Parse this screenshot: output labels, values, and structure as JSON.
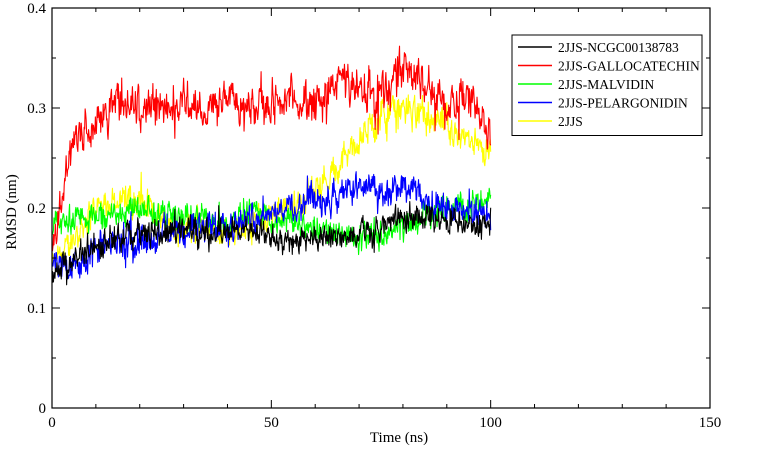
{
  "chart_data": {
    "type": "line",
    "title": "",
    "xlabel": "Time (ns)",
    "ylabel": "RMSD (nm)",
    "xlim": [
      0,
      150
    ],
    "ylim": [
      0,
      0.4
    ],
    "xticks": [
      0,
      50,
      100,
      150
    ],
    "yticks": [
      0,
      0.1,
      0.2,
      0.3,
      0.4
    ],
    "xtick_labels": [
      "0",
      "50",
      "100",
      "150"
    ],
    "ytick_labels": [
      "0",
      "0.1",
      "0.2",
      "0.3",
      "0.4"
    ],
    "grid": false,
    "legend_position": "top-right",
    "x": [
      0,
      5,
      10,
      15,
      20,
      25,
      30,
      35,
      40,
      45,
      50,
      55,
      60,
      65,
      70,
      75,
      80,
      85,
      90,
      95,
      100
    ],
    "series": [
      {
        "name": "2JJS-NCGC00138783",
        "color": "#000000",
        "values": [
          0.13,
          0.15,
          0.165,
          0.17,
          0.175,
          0.175,
          0.18,
          0.175,
          0.175,
          0.18,
          0.17,
          0.165,
          0.17,
          0.175,
          0.175,
          0.18,
          0.185,
          0.19,
          0.19,
          0.185,
          0.18
        ]
      },
      {
        "name": "2JJS-GALLOCATECHIN",
        "color": "#ff0000",
        "values": [
          0.16,
          0.27,
          0.29,
          0.31,
          0.3,
          0.3,
          0.305,
          0.3,
          0.31,
          0.3,
          0.305,
          0.31,
          0.3,
          0.33,
          0.32,
          0.31,
          0.34,
          0.33,
          0.3,
          0.31,
          0.28
        ]
      },
      {
        "name": "2JJS-MALVIDIN",
        "color": "#00ff00",
        "values": [
          0.18,
          0.19,
          0.19,
          0.195,
          0.2,
          0.195,
          0.19,
          0.19,
          0.185,
          0.2,
          0.19,
          0.185,
          0.18,
          0.175,
          0.17,
          0.175,
          0.18,
          0.19,
          0.2,
          0.2,
          0.21
        ]
      },
      {
        "name": "2JJS-PELARGONIDIN",
        "color": "#0000ff",
        "values": [
          0.15,
          0.14,
          0.16,
          0.165,
          0.17,
          0.175,
          0.175,
          0.18,
          0.185,
          0.19,
          0.2,
          0.2,
          0.21,
          0.21,
          0.22,
          0.215,
          0.22,
          0.21,
          0.2,
          0.195,
          0.19
        ]
      },
      {
        "name": "2JJS",
        "color": "#ffff00",
        "values": [
          0.14,
          0.17,
          0.2,
          0.21,
          0.205,
          0.19,
          0.185,
          0.18,
          0.175,
          0.185,
          0.19,
          0.2,
          0.22,
          0.24,
          0.27,
          0.29,
          0.3,
          0.29,
          0.28,
          0.27,
          0.25
        ]
      }
    ]
  }
}
